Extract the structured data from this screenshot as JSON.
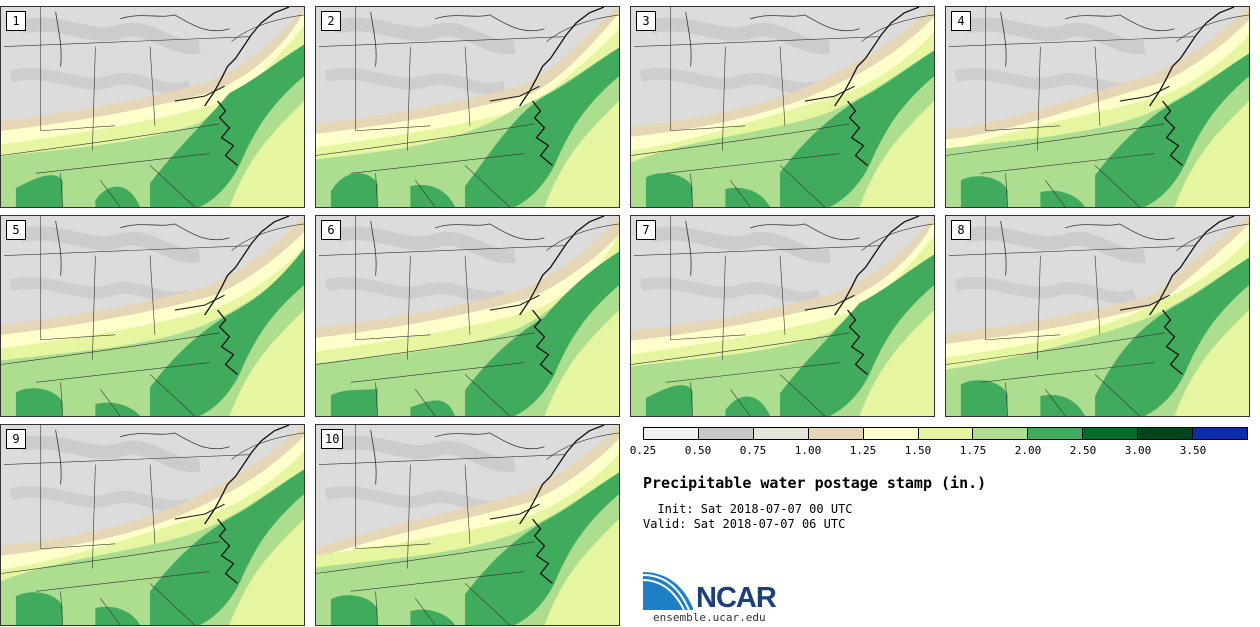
{
  "panels": [
    {
      "label": "1"
    },
    {
      "label": "2"
    },
    {
      "label": "3"
    },
    {
      "label": "4"
    },
    {
      "label": "5"
    },
    {
      "label": "6"
    },
    {
      "label": "7"
    },
    {
      "label": "8"
    },
    {
      "label": "9"
    },
    {
      "label": "10"
    }
  ],
  "legend": {
    "ticks": [
      "0.25",
      "0.50",
      "0.75",
      "1.00",
      "1.25",
      "1.50",
      "1.75",
      "2.00",
      "2.50",
      "3.00",
      "3.50"
    ],
    "colors": [
      "#f0f0f0",
      "#c8c8c8",
      "#e6e6d8",
      "#e5d6b5",
      "#ffffcc",
      "#e6f5a0",
      "#addd8e",
      "#41ab5d",
      "#006d2c",
      "#00441b",
      "#0c2ca8"
    ]
  },
  "title": "Precipitable water postage stamp (in.)",
  "init_line": "  Init: Sat 2018-07-07 00 UTC",
  "valid_line": "Valid: Sat 2018-07-07 06 UTC",
  "logo_text": "NCAR",
  "url": "ensemble.ucar.edu"
}
